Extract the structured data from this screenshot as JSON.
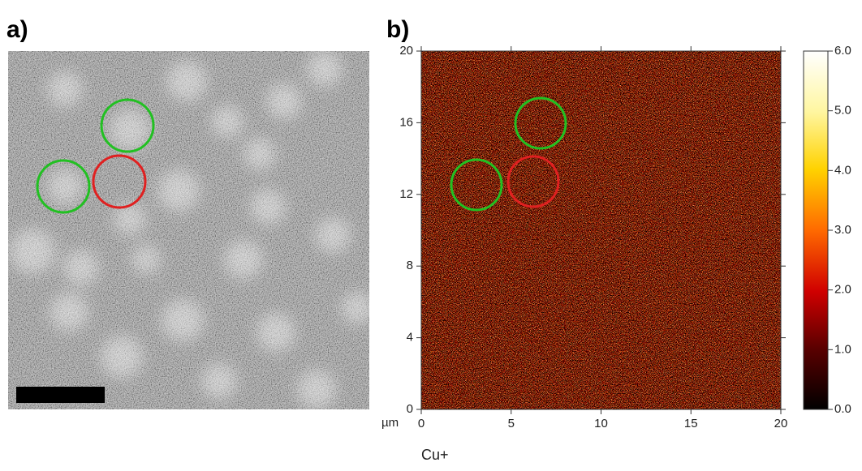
{
  "panel_a": {
    "label": "a)"
  },
  "panel_b": {
    "label": "b)",
    "xlim": [
      0,
      20
    ],
    "xticks": [
      0,
      5,
      10,
      15,
      20
    ],
    "ylim": [
      0,
      20
    ],
    "yticks": [
      0,
      4,
      8,
      12,
      16,
      20
    ],
    "x_unit": "µm",
    "map_title": "Cu+",
    "colorbar": {
      "lim": [
        0,
        6
      ],
      "ticks": [
        {
          "value": 0,
          "label": "0.0"
        },
        {
          "value": 1,
          "label": "1.0"
        },
        {
          "value": 2,
          "label": "2.0"
        },
        {
          "value": 3,
          "label": "3.0"
        },
        {
          "value": 4,
          "label": "4.0"
        },
        {
          "value": 5,
          "label": "5.0"
        },
        {
          "value": 6,
          "label": "6.0"
        }
      ]
    }
  }
}
